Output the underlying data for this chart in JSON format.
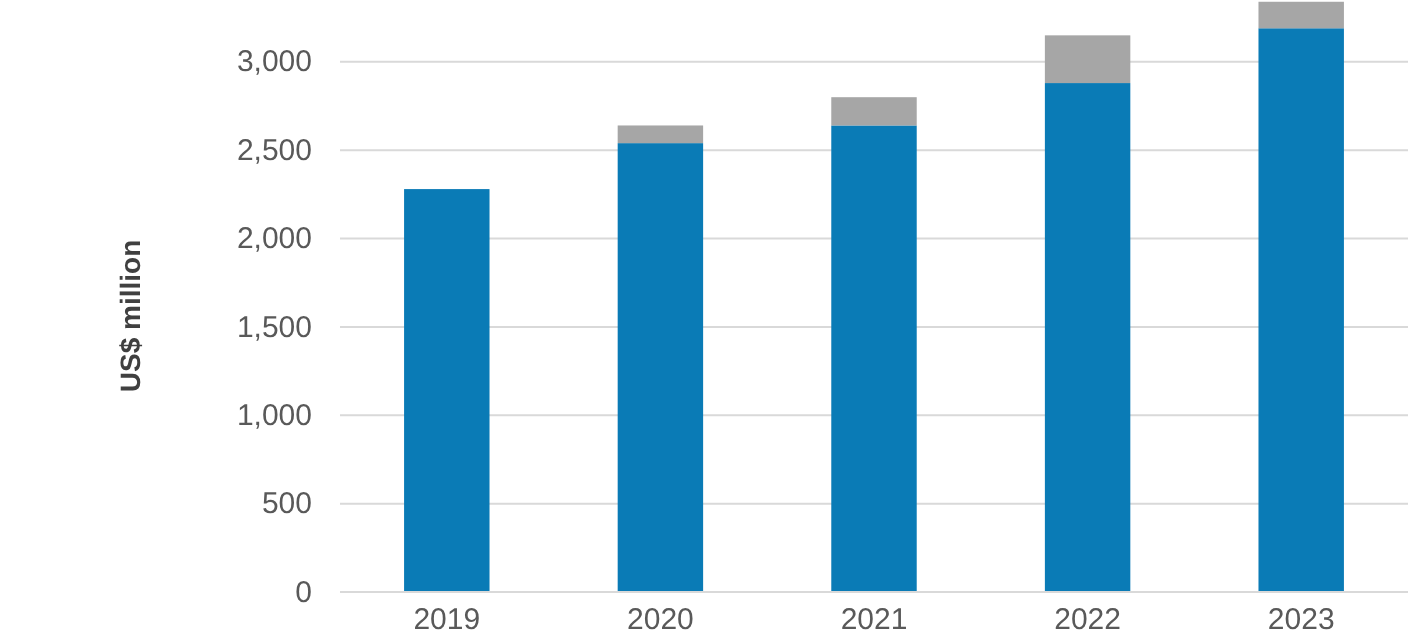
{
  "chart_data": {
    "type": "bar",
    "ylabel": "US$ million",
    "categories": [
      "2019",
      "2020",
      "2021",
      "2022",
      "2023"
    ],
    "stacked": true,
    "series": [
      {
        "color": "#0a7bb6",
        "values": [
          2280,
          2540,
          2640,
          2880,
          3190
        ]
      },
      {
        "color": "#a6a6a6",
        "values": [
          null,
          100,
          160,
          270,
          150
        ]
      }
    ],
    "ylim": [
      0,
      3350
    ],
    "yticks": [
      {
        "value": 0,
        "label": "0"
      },
      {
        "value": 500,
        "label": "500"
      },
      {
        "value": 1000,
        "label": "1,000"
      },
      {
        "value": 1500,
        "label": "1,500"
      },
      {
        "value": 2000,
        "label": "2,000"
      },
      {
        "value": 2500,
        "label": "2,500"
      },
      {
        "value": 3000,
        "label": "3,000"
      }
    ],
    "grid": "y"
  }
}
